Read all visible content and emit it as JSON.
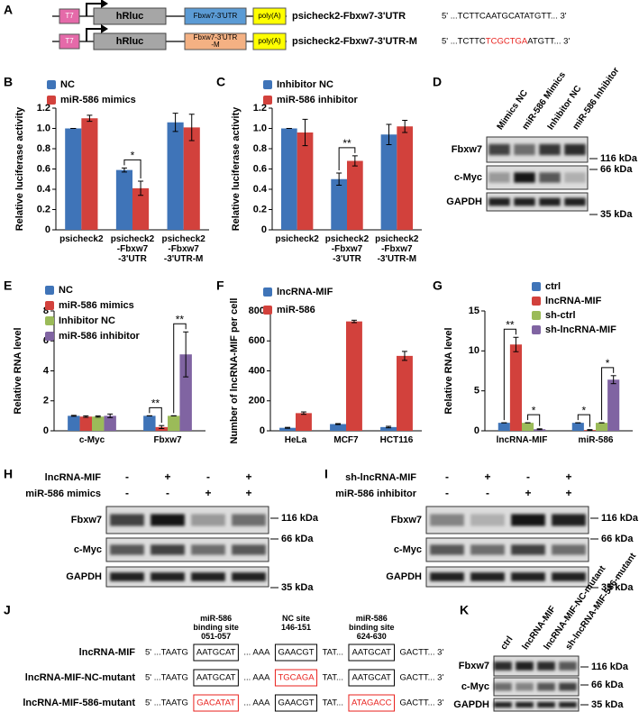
{
  "panel_labels": [
    "A",
    "B",
    "C",
    "D",
    "E",
    "F",
    "G",
    "H",
    "I",
    "J",
    "K"
  ],
  "constructs": [
    {
      "elements": [
        "T7",
        "hRluc",
        "Fbxw7-3'UTR",
        "poly(A)"
      ],
      "name": "psicheck2-Fbxw7-3'UTR",
      "sequence": [
        {
          "text": "5' ...TCTTCAATGCATATGTT... 3'"
        }
      ]
    },
    {
      "elements": [
        "T7",
        "hRluc",
        "Fbxw7-3'UTR\n-M",
        "poly(A)"
      ],
      "name": "psicheck2-Fbxw7-3'UTR-M",
      "sequence": [
        {
          "text": "5' ...TCTTC"
        },
        {
          "text": "TCGCTGA",
          "color": "#e8201c"
        },
        {
          "text": "ATGTT... 3'"
        }
      ]
    }
  ],
  "chart_data": [
    {
      "type": "bar",
      "y_label": "Relative luciferase activity",
      "categories": [
        "psicheck2",
        "psicheck2\n-Fbxw7\n-3'UTR",
        "psicheck2\n-Fbxw7\n-3'UTR-M"
      ],
      "series": [
        {
          "name": "NC",
          "color": "#3f74b8",
          "values": [
            1,
            0.59,
            1.06
          ],
          "error": [
            0,
            0.02,
            0.09
          ]
        },
        {
          "name": "miR-586 mimics",
          "color": "#d2413c",
          "values": [
            1.1,
            0.41,
            1.01
          ],
          "error": [
            0.03,
            0.07,
            0.13
          ]
        }
      ],
      "ylim": [
        0,
        1.2
      ],
      "yticks": [
        0,
        0.2,
        0.4,
        0.6,
        0.8,
        {
          "value": 1,
          "label": "1.0"
        },
        1.2
      ],
      "annotations": [
        "*"
      ]
    },
    {
      "type": "bar",
      "y_label": "Relative luciferase activity",
      "categories": [
        "psicheck2",
        "psicheck2\n-Fbxw7\n-3'UTR",
        "psicheck2\n-Fbxw7\n-3'UTR-M"
      ],
      "series": [
        {
          "name": "Inhibitor NC",
          "color": "#3f74b8",
          "values": [
            1,
            0.5,
            0.94
          ],
          "error": [
            0,
            0.06,
            0.1
          ]
        },
        {
          "name": "miR-586 inhibitor",
          "color": "#d2413c",
          "values": [
            0.96,
            0.68,
            1.02
          ],
          "error": [
            0.13,
            0.05,
            0.06
          ]
        }
      ],
      "ylim": [
        0,
        1.2
      ],
      "yticks": [
        0,
        0.2,
        0.4,
        0.6,
        0.8,
        {
          "value": 1,
          "label": "1.0"
        },
        1.2
      ],
      "annotations": [
        "**"
      ]
    },
    {
      "type": "bar",
      "y_label": "Relative RNA level",
      "categories": [
        "c-Myc",
        "Fbxw7"
      ],
      "series": [
        {
          "name": "NC",
          "color": "#3f74b8",
          "values": [
            1,
            1
          ],
          "error": [
            0.03,
            0
          ]
        },
        {
          "name": "miR-586 mimics",
          "color": "#d2413c",
          "values": [
            0.95,
            0.25
          ],
          "error": [
            0.05,
            0.1
          ]
        },
        {
          "name": "Inhibitor NC",
          "color": "#9bbb59",
          "values": [
            0.95,
            1
          ],
          "error": [
            0.04,
            0
          ]
        },
        {
          "name": "miR-586 inhibitor",
          "color": "#8064a2",
          "values": [
            1,
            5.1
          ],
          "error": [
            0.12,
            1.5
          ]
        }
      ],
      "ylim": [
        0,
        8
      ],
      "yticks": [
        0,
        2,
        4,
        6,
        8
      ],
      "annotations": [
        "**",
        "**"
      ]
    },
    {
      "type": "bar",
      "y_label": "Number of lncRNA-MIF per cell",
      "categories": [
        "HeLa",
        "MCF7",
        "HCT116"
      ],
      "series": [
        {
          "name": "lncRNA-MIF",
          "color": "#3f74b8",
          "values": [
            20,
            45,
            25
          ],
          "error": [
            3,
            3,
            5
          ]
        },
        {
          "name": "miR-586",
          "color": "#d2413c",
          "values": [
            118,
            730,
            500
          ],
          "error": [
            8,
            8,
            30
          ]
        }
      ],
      "ylim": [
        0,
        800
      ],
      "yticks": [
        0,
        200,
        400,
        600,
        800
      ],
      "annotations": []
    },
    {
      "type": "bar",
      "y_label": "Relative RNA level",
      "categories": [
        "lncRNA-MIF",
        "miR-586"
      ],
      "series": [
        {
          "name": "ctrl",
          "color": "#3f74b8",
          "values": [
            1,
            1
          ],
          "error": [
            0,
            0
          ]
        },
        {
          "name": "lncRNA-MIF",
          "color": "#d2413c",
          "values": [
            10.8,
            0.1
          ],
          "error": [
            0.9,
            0.05
          ]
        },
        {
          "name": "sh-ctrl",
          "color": "#9bbb59",
          "values": [
            1,
            1
          ],
          "error": [
            0,
            0
          ]
        },
        {
          "name": "sh-lncRNA-MIF",
          "color": "#8064a2",
          "values": [
            0.2,
            6.4
          ],
          "error": [
            0.05,
            0.5
          ]
        }
      ],
      "ylim": [
        0,
        15
      ],
      "yticks": [
        0,
        5,
        10,
        15
      ],
      "annotations": [
        "**",
        "*",
        "*",
        "*"
      ]
    }
  ],
  "blots": [
    {
      "lanes": [
        "Mimics NC",
        "miR-586 Mimics",
        "Inhibitor NC",
        "miR-586 Inhibitor"
      ],
      "rows": [
        "Fbxw7",
        "c-Myc",
        "GAPDH"
      ],
      "markers": [
        "116 kDa",
        "66 kDa",
        "35 kDa"
      ]
    },
    {
      "conditions": [
        {
          "name": "lncRNA-MIF",
          "signs": [
            "-",
            "+",
            "-",
            "+"
          ]
        },
        {
          "name": "miR-586 mimics",
          "signs": [
            "-",
            "-",
            "+",
            "+"
          ]
        }
      ],
      "rows": [
        "Fbxw7",
        "c-Myc",
        "GAPDH"
      ],
      "markers": [
        "116 kDa",
        "66 kDa",
        "35 kDa"
      ]
    },
    {
      "conditions": [
        {
          "name": "sh-lncRNA-MIF",
          "signs": [
            "-",
            "+",
            "-",
            "+"
          ]
        },
        {
          "name": "miR-586 inhibitor",
          "signs": [
            "-",
            "-",
            "+",
            "+"
          ]
        }
      ],
      "rows": [
        "Fbxw7",
        "c-Myc",
        "GAPDH"
      ],
      "markers": [
        "116 kDa",
        "66 kDa",
        "35 kDa"
      ]
    },
    {
      "lanes": [
        "ctrl",
        "lncRNA-MIF",
        "lncRNA-MIF-NC-mutant",
        "sh-lncRNA-MIF-586-mutant"
      ],
      "rows": [
        "Fbxw7",
        "c-Myc",
        "GAPDH"
      ],
      "markers": [
        "116 kDa",
        "66 kDa",
        "35 kDa"
      ]
    }
  ],
  "sequences": {
    "headers": [
      "miR-586\nbinding site\n051-057",
      "NC site\n146-151",
      "miR-586\nbinding site\n624-630"
    ],
    "rows": [
      {
        "name": "lncRNA-MIF",
        "segments": [
          {
            "text": "5' ...TAATG"
          },
          {
            "text": "AATGCAT",
            "box": true
          },
          {
            "text": "... AAA"
          },
          {
            "text": "GAACGT",
            "box": true
          },
          {
            "text": "TAT..."
          },
          {
            "text": "AATGCAT",
            "box": true
          },
          {
            "text": "GACTT... 3'"
          }
        ]
      },
      {
        "name": "lncRNA-MIF-NC-mutant",
        "segments": [
          {
            "text": "5' ...TAATG"
          },
          {
            "text": "AATGCAT",
            "box": true
          },
          {
            "text": "... AAA"
          },
          {
            "text": "TGCAGA",
            "box": true,
            "color": "#e8201c"
          },
          {
            "text": "TAT..."
          },
          {
            "text": "AATGCAT",
            "box": true
          },
          {
            "text": "GACTT... 3'"
          }
        ]
      },
      {
        "name": "lncRNA-MIF-586-mutant",
        "segments": [
          {
            "text": "5' ...TAATG"
          },
          {
            "text": "GACATAT",
            "box": true,
            "color": "#e8201c"
          },
          {
            "text": "... AAA"
          },
          {
            "text": "GAACGT",
            "box": true
          },
          {
            "text": "TAT..."
          },
          {
            "text": "ATAGACC",
            "box": true,
            "color": "#e8201c"
          },
          {
            "text": "GACTT... 3'"
          }
        ]
      }
    ]
  }
}
